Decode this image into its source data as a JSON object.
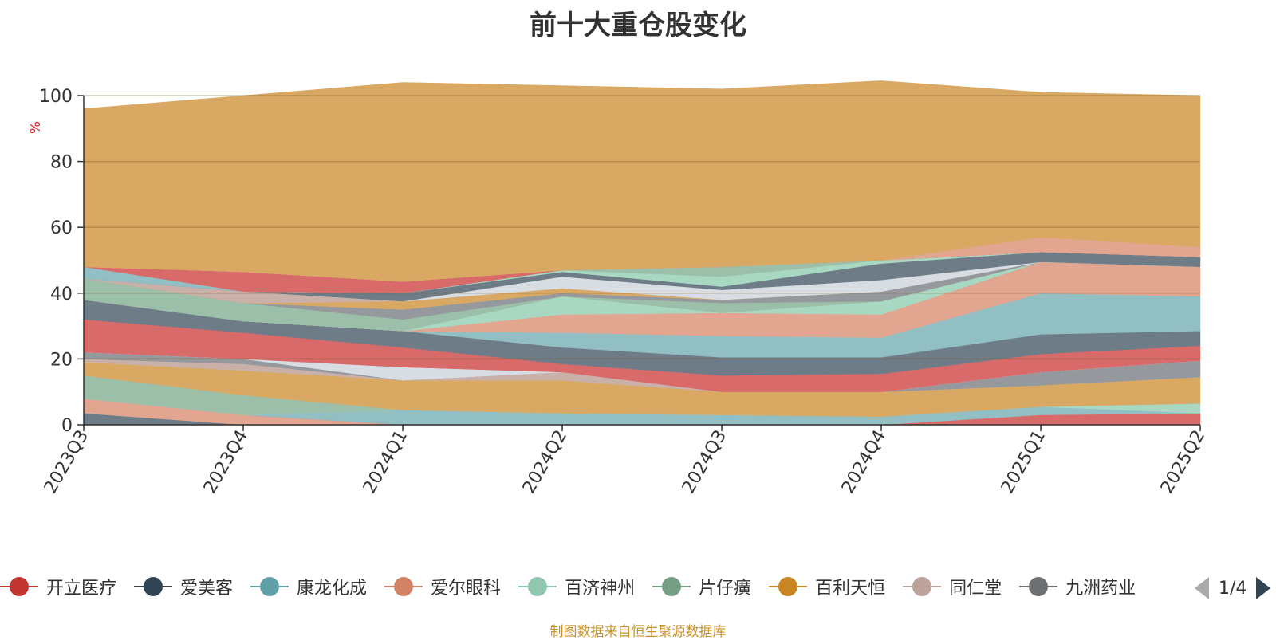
{
  "title": "前十大重仓股变化",
  "source_note": "制图数据来自恒生聚源数据库",
  "legend": {
    "items": [
      {
        "name": "开立医疗",
        "color": "#c23531"
      },
      {
        "name": "爱美客",
        "color": "#2f4554"
      },
      {
        "name": "康龙化成",
        "color": "#61a0a8"
      },
      {
        "name": "爱尔眼科",
        "color": "#d48265"
      },
      {
        "name": "百济神州",
        "color": "#91c7ae"
      },
      {
        "name": "片仔癀",
        "color": "#749f83"
      },
      {
        "name": "百利天恒",
        "color": "#ca8622"
      },
      {
        "name": "同仁堂",
        "color": "#bda29a"
      },
      {
        "name": "九洲药业",
        "color": "#6e7074"
      }
    ],
    "page_label": "1/4"
  },
  "chart_data": {
    "type": "area",
    "title": "前十大重仓股变化",
    "ylabel": "%",
    "ylim": [
      0,
      100
    ],
    "yticks": [
      0,
      20,
      40,
      60,
      80,
      100
    ],
    "categories": [
      "2023Q3",
      "2023Q4",
      "2024Q1",
      "2024Q2",
      "2024Q3",
      "2024Q4",
      "2025Q1",
      "2025Q2"
    ],
    "grid": true,
    "layers": [
      {
        "color": "#6e7c88",
        "values": [
          3.5,
          0,
          0,
          0,
          0,
          0,
          0,
          0
        ]
      },
      {
        "color": "#e2a58f",
        "values": [
          4.5,
          3,
          0,
          0,
          0,
          0,
          0,
          0
        ]
      },
      {
        "color": "#d96a6a",
        "values": [
          0,
          0,
          0,
          0,
          0,
          0,
          3,
          3.5
        ]
      },
      {
        "color": "#92bfc4",
        "values": [
          0,
          0,
          4.5,
          3.5,
          3,
          2.5,
          2.5,
          0
        ]
      },
      {
        "color": "#a8d8c2",
        "values": [
          0,
          0,
          0,
          0,
          0,
          0,
          0,
          3
        ]
      },
      {
        "color": "#9cbfa9",
        "values": [
          7,
          6,
          0,
          0,
          0,
          0,
          0,
          0
        ]
      },
      {
        "color": "#d9a963",
        "values": [
          4,
          7.5,
          9,
          10,
          7,
          7.5,
          6.5,
          8
        ]
      },
      {
        "color": "#c9b0a8",
        "values": [
          1,
          2,
          0,
          2.5,
          0,
          0,
          0,
          0
        ]
      },
      {
        "color": "#95999e",
        "values": [
          2,
          1.5,
          0,
          0,
          0,
          0,
          4,
          5
        ]
      },
      {
        "color": "#d8dde3",
        "values": [
          0,
          0,
          4,
          0,
          0,
          0,
          0,
          0
        ]
      },
      {
        "color": "#d96a6a",
        "values": [
          10,
          8,
          6,
          2.5,
          5,
          5.5,
          5.5,
          4.5
        ]
      },
      {
        "color": "#6e7c88",
        "values": [
          6,
          3.5,
          5,
          5,
          5.5,
          5,
          6,
          4.5
        ]
      },
      {
        "color": "#92bfc4",
        "values": [
          0,
          0,
          0,
          4.5,
          6.5,
          6,
          12.5,
          10.5
        ]
      },
      {
        "color": "#e2a58f",
        "values": [
          0,
          0,
          0,
          5.5,
          7,
          7,
          9.5,
          9
        ]
      },
      {
        "color": "#a8d8c2",
        "values": [
          0,
          0,
          0,
          5.5,
          0,
          4,
          0,
          0
        ]
      },
      {
        "color": "#9cbfa9",
        "values": [
          6.5,
          5.5,
          3.5,
          0,
          3,
          0,
          0,
          0
        ]
      },
      {
        "color": "#95999e",
        "values": [
          0,
          0,
          3,
          1,
          1,
          3,
          0,
          0
        ]
      },
      {
        "color": "#d9a963",
        "values": [
          0,
          0,
          2.5,
          1.5,
          0,
          0,
          0,
          0
        ]
      },
      {
        "color": "#c9b0a8",
        "values": [
          0,
          3.5,
          0,
          0,
          0,
          0,
          0,
          0
        ]
      },
      {
        "color": "#d8dde3",
        "values": [
          0,
          0,
          0,
          3.5,
          3,
          3.5,
          0,
          0
        ]
      },
      {
        "color": "#6e7c88",
        "values": [
          0,
          0,
          2.5,
          1.5,
          1,
          5,
          3,
          3
        ]
      },
      {
        "color": "#92bfc4",
        "values": [
          3.5,
          0,
          0,
          0,
          0,
          0,
          0,
          0
        ]
      },
      {
        "color": "#a8d8c2",
        "values": [
          0,
          0,
          0,
          0.5,
          3,
          1,
          0,
          0
        ]
      },
      {
        "color": "#9cbfa9",
        "values": [
          0,
          0,
          0,
          0,
          3,
          0,
          0,
          0
        ]
      },
      {
        "color": "#d96a6a",
        "values": [
          0,
          6,
          3.5,
          0,
          0,
          0,
          0,
          0
        ]
      },
      {
        "color": "#e2a58f",
        "values": [
          0,
          0,
          0,
          0,
          0,
          0,
          4.5,
          3
        ]
      },
      {
        "color": "#d9a963",
        "values": [
          48,
          53.5,
          60.5,
          56,
          54,
          54.5,
          44,
          46
        ]
      }
    ]
  }
}
